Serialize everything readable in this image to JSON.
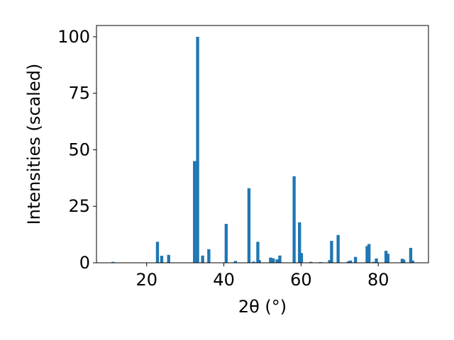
{
  "chart_data": {
    "type": "bar",
    "xlabel": "2θ (°)",
    "ylabel": "Intensities (scaled)",
    "xlim": [
      7,
      93
    ],
    "ylim": [
      0,
      105
    ],
    "xticks": [
      20,
      40,
      60,
      80
    ],
    "yticks": [
      0,
      25,
      50,
      75,
      100
    ],
    "bar_color": "#1f77b4",
    "bar_width": 0.8,
    "x": [
      11.3,
      22.8,
      23.9,
      25.7,
      32.4,
      33.2,
      34.5,
      36.1,
      40.6,
      43.0,
      46.5,
      47.7,
      48.8,
      49.2,
      52.1,
      52.8,
      53.8,
      54.5,
      58.2,
      59.6,
      60.1,
      62.5,
      65.0,
      67.4,
      67.9,
      69.6,
      72.3,
      72.8,
      74.1,
      77.1,
      77.6,
      78.8,
      79.5,
      82.0,
      82.5,
      86.2,
      86.6,
      88.4,
      88.9
    ],
    "values": [
      0.4,
      9.3,
      3.1,
      3.5,
      45.0,
      100.0,
      3.2,
      6.0,
      17.2,
      0.8,
      33.0,
      0.5,
      9.3,
      1.2,
      2.3,
      2.0,
      1.5,
      3.2,
      38.3,
      17.9,
      4.3,
      0.4,
      0.3,
      1.2,
      9.7,
      12.3,
      0.7,
      1.0,
      2.6,
      7.4,
      8.3,
      0.4,
      1.9,
      5.3,
      4.0,
      1.8,
      1.4,
      6.6,
      1.0
    ]
  }
}
